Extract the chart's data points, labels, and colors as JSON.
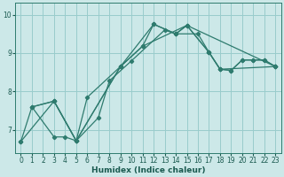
{
  "xlabel": "Humidex (Indice chaleur)",
  "bg_color": "#cce8e8",
  "grid_color": "#99cccc",
  "line_color": "#2e7b6e",
  "xlim": [
    -0.5,
    23.5
  ],
  "ylim": [
    6.4,
    10.3
  ],
  "xticks": [
    0,
    1,
    2,
    3,
    4,
    5,
    6,
    7,
    8,
    9,
    10,
    11,
    12,
    13,
    14,
    15,
    16,
    17,
    18,
    19,
    20,
    21,
    22,
    23
  ],
  "yticks": [
    7,
    8,
    9,
    10
  ],
  "series": [
    {
      "x": [
        0,
        1,
        3,
        5,
        6,
        9,
        11,
        12,
        14,
        15,
        17,
        18,
        19,
        20,
        21,
        22,
        23
      ],
      "y": [
        6.7,
        7.6,
        7.75,
        6.72,
        7.85,
        8.65,
        9.18,
        9.75,
        9.5,
        9.72,
        9.02,
        8.58,
        8.55,
        8.82,
        8.82,
        8.82,
        8.65
      ]
    },
    {
      "x": [
        1,
        3,
        4,
        5,
        7,
        8,
        10,
        13,
        14,
        16,
        17,
        18,
        19,
        20,
        21,
        22,
        23
      ],
      "y": [
        7.6,
        6.82,
        6.82,
        6.72,
        7.32,
        8.28,
        8.8,
        9.6,
        9.5,
        9.5,
        9.02,
        8.58,
        8.55,
        8.82,
        8.82,
        8.82,
        8.65
      ]
    },
    {
      "x": [
        1,
        3,
        5,
        9,
        11,
        15,
        17,
        18,
        23
      ],
      "y": [
        7.6,
        7.75,
        6.72,
        8.65,
        9.18,
        9.72,
        9.02,
        8.58,
        8.65
      ]
    },
    {
      "x": [
        0,
        3,
        5,
        9,
        12,
        14,
        15,
        23
      ],
      "y": [
        6.7,
        7.75,
        6.72,
        8.65,
        9.75,
        9.5,
        9.72,
        8.65
      ]
    }
  ]
}
